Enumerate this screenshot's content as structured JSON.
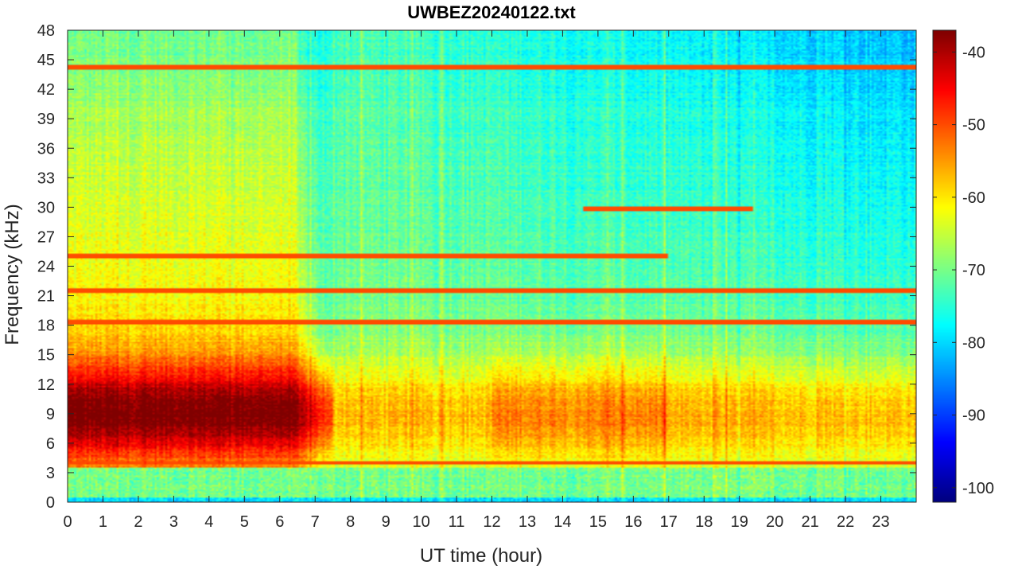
{
  "chart_data": {
    "type": "heatmap",
    "title": "UWBEZ20240122.txt",
    "xlabel": "UT time (hour)",
    "ylabel": "Frequency (kHz)",
    "xlim": [
      0,
      24
    ],
    "ylim": [
      0,
      48
    ],
    "x_ticks": [
      0,
      1,
      2,
      3,
      4,
      5,
      6,
      7,
      8,
      9,
      10,
      11,
      12,
      13,
      14,
      15,
      16,
      17,
      18,
      19,
      20,
      21,
      22,
      23
    ],
    "x_tick_labels": [
      "0",
      "1",
      "2",
      "3",
      "4",
      "5",
      "6",
      "7",
      "8",
      "9",
      "10",
      "11",
      "12",
      "13",
      "14",
      "15",
      "16",
      "17",
      "18",
      "19",
      "20",
      "21",
      "22",
      "23"
    ],
    "y_ticks": [
      0,
      3,
      6,
      9,
      12,
      15,
      18,
      21,
      24,
      27,
      30,
      33,
      36,
      39,
      42,
      45,
      48
    ],
    "y_tick_labels": [
      "0",
      "3",
      "6",
      "9",
      "12",
      "15",
      "18",
      "21",
      "24",
      "27",
      "30",
      "33",
      "36",
      "39",
      "42",
      "45",
      "48"
    ],
    "colorbar": {
      "colormap": "jet",
      "range": [
        -102,
        -37
      ],
      "ticks": [
        -100,
        -90,
        -80,
        -70,
        -60,
        -50,
        -40
      ],
      "tick_labels": [
        "-100",
        "-90",
        "-80",
        "-70",
        "-60",
        "-50",
        "-40"
      ]
    },
    "grid": false,
    "bands": [
      {
        "freq_khz": 21.5,
        "t_start": 0,
        "t_end": 24
      },
      {
        "freq_khz": 18.3,
        "t_start": 0,
        "t_end": 24
      },
      {
        "freq_khz": 4.0,
        "t_start": 0,
        "t_end": 24
      },
      {
        "freq_khz": 25.0,
        "t_start": 0,
        "t_end": 17
      },
      {
        "freq_khz": 29.8,
        "t_start": 14.6,
        "t_end": 19.4
      },
      {
        "freq_khz": 44.2,
        "t_start": 0,
        "t_end": 24
      }
    ]
  }
}
